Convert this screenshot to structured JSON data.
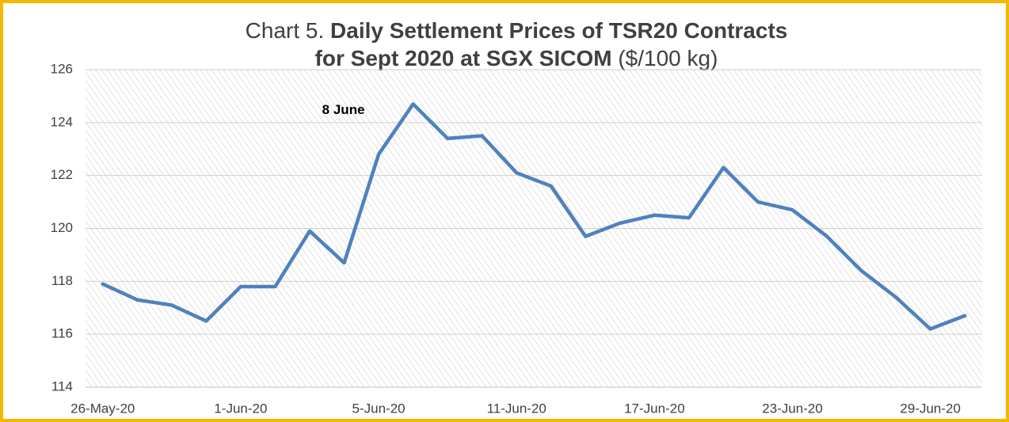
{
  "chart_data": {
    "type": "line",
    "title": [
      "Chart 5.",
      "Daily Settlement Prices of TSR20 Contracts",
      "for Sept 2020 at SGX SICOM",
      "($/100 kg)"
    ],
    "categories": [
      "26-May-20",
      null,
      null,
      null,
      "1-Jun-20",
      null,
      null,
      null,
      "5-Jun-20",
      null,
      null,
      null,
      "11-Jun-20",
      null,
      null,
      null,
      "17-Jun-20",
      null,
      null,
      null,
      "23-Jun-20",
      null,
      null,
      null,
      "29-Jun-20",
      null
    ],
    "series": [
      {
        "color": "#4f81bd",
        "values": [
          117.9,
          117.3,
          117.1,
          116.5,
          117.8,
          117.8,
          119.9,
          118.7,
          122.8,
          124.7,
          123.4,
          123.5,
          122.1,
          121.6,
          119.7,
          120.2,
          120.5,
          120.4,
          122.3,
          121.0,
          120.7,
          119.7,
          118.4,
          117.4,
          116.2,
          116.7
        ]
      }
    ],
    "ylim": [
      114,
      126
    ],
    "yticks": [
      114,
      116,
      118,
      120,
      122,
      124,
      126
    ],
    "grid": true,
    "annotations": [
      {
        "text": "8 June",
        "index": 9
      }
    ]
  }
}
